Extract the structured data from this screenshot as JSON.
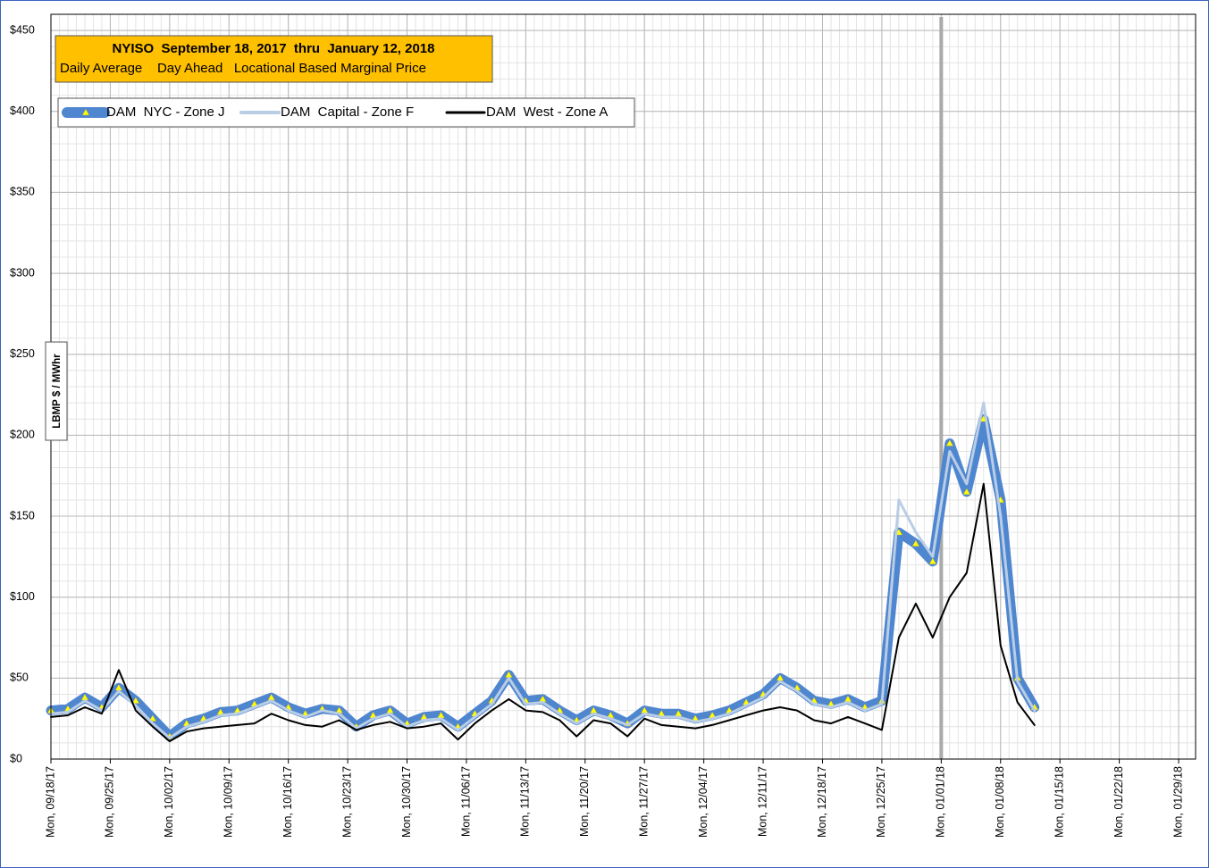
{
  "chart_data": {
    "type": "line",
    "title": "NYISO  September 18, 2017  thru  January 12, 2018",
    "subtitle": "Daily Average    Day Ahead   Locational Based Marginal Price",
    "y_label": "LBMP $ / MWhr",
    "x": [
      "2017-09-18",
      "2017-09-20",
      "2017-09-22",
      "2017-09-24",
      "2017-09-26",
      "2017-09-28",
      "2017-09-30",
      "2017-10-02",
      "2017-10-04",
      "2017-10-06",
      "2017-10-08",
      "2017-10-10",
      "2017-10-12",
      "2017-10-14",
      "2017-10-16",
      "2017-10-18",
      "2017-10-20",
      "2017-10-22",
      "2017-10-24",
      "2017-10-26",
      "2017-10-28",
      "2017-10-30",
      "2017-11-01",
      "2017-11-03",
      "2017-11-05",
      "2017-11-07",
      "2017-11-09",
      "2017-11-11",
      "2017-11-13",
      "2017-11-15",
      "2017-11-17",
      "2017-11-19",
      "2017-11-21",
      "2017-11-23",
      "2017-11-25",
      "2017-11-27",
      "2017-11-29",
      "2017-12-01",
      "2017-12-03",
      "2017-12-05",
      "2017-12-07",
      "2017-12-09",
      "2017-12-11",
      "2017-12-13",
      "2017-12-15",
      "2017-12-17",
      "2017-12-19",
      "2017-12-21",
      "2017-12-23",
      "2017-12-25",
      "2017-12-27",
      "2017-12-29",
      "2017-12-31",
      "2018-01-02",
      "2018-01-04",
      "2018-01-06",
      "2018-01-08",
      "2018-01-10",
      "2018-01-12"
    ],
    "series": [
      {
        "name": "DAM  NYC - Zone J",
        "color": "#4f86d0",
        "marker_color": "#ffff00",
        "values": [
          30,
          31,
          38,
          32,
          44,
          36,
          25,
          14,
          22,
          25,
          29,
          30,
          34,
          38,
          32,
          28,
          31,
          30,
          20,
          27,
          30,
          22,
          26,
          27,
          20,
          28,
          36,
          52,
          36,
          37,
          30,
          24,
          30,
          27,
          22,
          30,
          28,
          28,
          25,
          27,
          30,
          35,
          40,
          50,
          44,
          36,
          34,
          37,
          32,
          36,
          140,
          133,
          122,
          195,
          165,
          210,
          160,
          50,
          32
        ]
      },
      {
        "name": "DAM  Capital - Zone F",
        "color": "#b9cde5",
        "values": [
          28,
          29,
          36,
          30,
          42,
          33,
          22,
          13,
          20,
          23,
          27,
          28,
          32,
          36,
          30,
          26,
          30,
          28,
          19,
          25,
          28,
          20,
          24,
          25,
          18,
          26,
          34,
          50,
          34,
          35,
          28,
          22,
          28,
          25,
          21,
          28,
          26,
          26,
          23,
          25,
          28,
          33,
          38,
          48,
          42,
          34,
          32,
          35,
          30,
          34,
          160,
          140,
          125,
          190,
          170,
          220,
          150,
          48,
          30
        ]
      },
      {
        "name": "DAM  West - Zone A",
        "color": "#000000",
        "values": [
          26,
          27,
          32,
          28,
          55,
          30,
          20,
          11,
          17,
          19,
          20,
          21,
          22,
          28,
          24,
          21,
          20,
          24,
          18,
          21,
          23,
          19,
          20,
          22,
          12,
          22,
          30,
          37,
          30,
          29,
          24,
          14,
          24,
          22,
          14,
          25,
          21,
          20,
          19,
          21,
          24,
          27,
          30,
          32,
          30,
          24,
          22,
          26,
          22,
          18,
          75,
          96,
          75,
          100,
          115,
          170,
          70,
          35,
          21
        ]
      }
    ],
    "xlim": [
      "2017-09-18",
      "2018-01-31"
    ],
    "xticks": [
      {
        "value": "2017-09-18",
        "label": "Mon, 09/18/17"
      },
      {
        "value": "2017-09-25",
        "label": "Mon, 09/25/17"
      },
      {
        "value": "2017-10-02",
        "label": "Mon, 10/02/17"
      },
      {
        "value": "2017-10-09",
        "label": "Mon, 10/09/17"
      },
      {
        "value": "2017-10-16",
        "label": "Mon, 10/16/17"
      },
      {
        "value": "2017-10-23",
        "label": "Mon, 10/23/17"
      },
      {
        "value": "2017-10-30",
        "label": "Mon, 10/30/17"
      },
      {
        "value": "2017-11-06",
        "label": "Mon, 11/06/17"
      },
      {
        "value": "2017-11-13",
        "label": "Mon, 11/13/17"
      },
      {
        "value": "2017-11-20",
        "label": "Mon, 11/20/17"
      },
      {
        "value": "2017-11-27",
        "label": "Mon, 11/27/17"
      },
      {
        "value": "2017-12-04",
        "label": "Mon, 12/04/17"
      },
      {
        "value": "2017-12-11",
        "label": "Mon, 12/11/17"
      },
      {
        "value": "2017-12-18",
        "label": "Mon, 12/18/17"
      },
      {
        "value": "2017-12-25",
        "label": "Mon, 12/25/17"
      },
      {
        "value": "2018-01-01",
        "label": "Mon, 01/01/18"
      },
      {
        "value": "2018-01-08",
        "label": "Mon, 01/08/18"
      },
      {
        "value": "2018-01-15",
        "label": "Mon, 01/15/18"
      },
      {
        "value": "2018-01-22",
        "label": "Mon, 01/22/18"
      },
      {
        "value": "2018-01-29",
        "label": "Mon, 01/29/18"
      }
    ],
    "ylim": [
      0,
      460
    ],
    "yticks": [
      {
        "value": 0,
        "label": "$0"
      },
      {
        "value": 50,
        "label": "$50"
      },
      {
        "value": 100,
        "label": "$100"
      },
      {
        "value": 150,
        "label": "$150"
      },
      {
        "value": 200,
        "label": "$200"
      },
      {
        "value": 250,
        "label": "$250"
      },
      {
        "value": 300,
        "label": "$300"
      },
      {
        "value": 350,
        "label": "$350"
      },
      {
        "value": 400,
        "label": "$400"
      },
      {
        "value": 450,
        "label": "$450"
      }
    ],
    "grid": true,
    "vline": "2018-01-01",
    "legend": "top-left"
  }
}
